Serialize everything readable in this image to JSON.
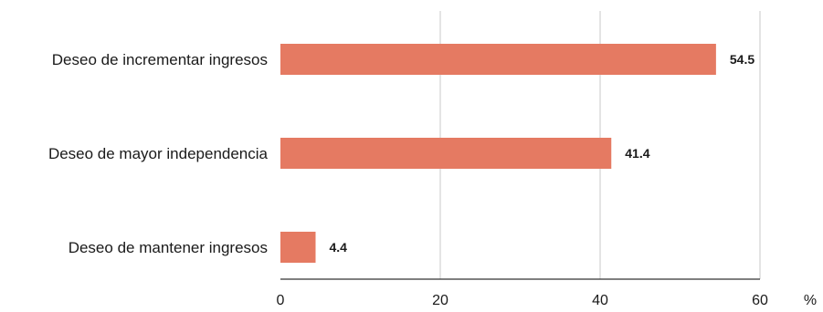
{
  "chart_data": {
    "type": "bar",
    "orientation": "horizontal",
    "categories": [
      "Deseo de incrementar ingresos",
      "Deseo de mayor independencia",
      "Deseo de mantener ingresos"
    ],
    "values": [
      54.5,
      41.4,
      4.4
    ],
    "value_labels": [
      "54.5",
      "41.4",
      "4.4"
    ],
    "xlim": [
      0,
      60
    ],
    "xticks": [
      0,
      20,
      40,
      60
    ],
    "xtick_labels": [
      "0",
      "20",
      "40",
      "60"
    ],
    "x_unit": "%",
    "grid": "vertical",
    "bar_color": "#e57a62",
    "grid_color": "#c8c8c8",
    "axis_color": "#333333"
  }
}
